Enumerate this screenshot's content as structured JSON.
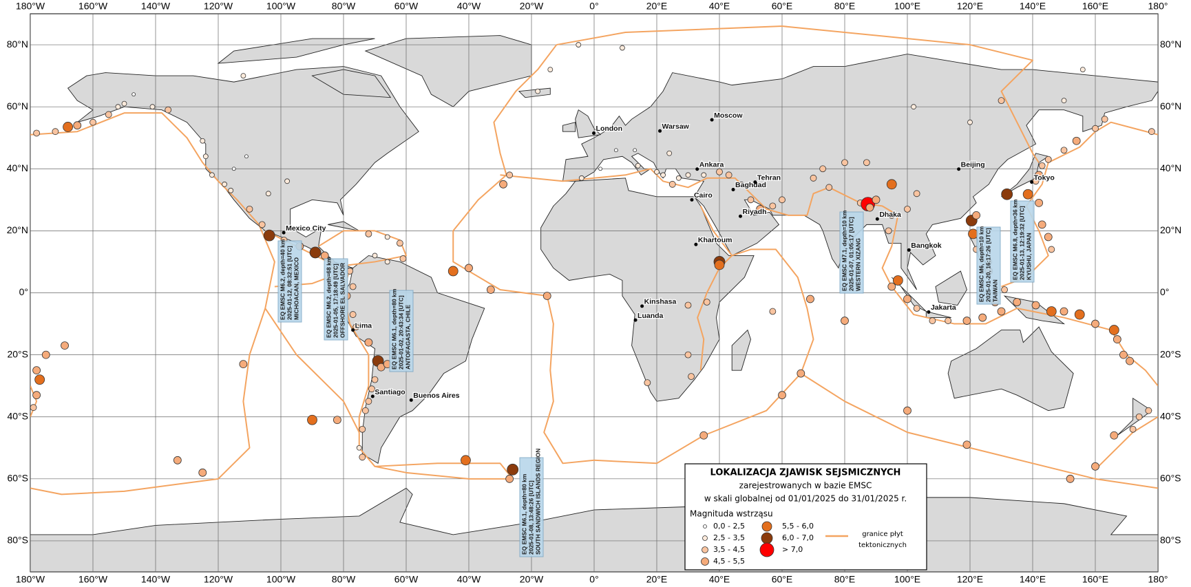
{
  "map": {
    "xlim": [
      -180,
      180
    ],
    "ylim": [
      -90,
      90
    ],
    "grid": true,
    "land_color": "#d9d9d9",
    "plate_color": "#f4a460",
    "xticks": [
      {
        "value": -180,
        "label": "180°W"
      },
      {
        "value": -160,
        "label": "160°W"
      },
      {
        "value": -140,
        "label": "140°W"
      },
      {
        "value": -120,
        "label": "120°W"
      },
      {
        "value": -100,
        "label": "100°W"
      },
      {
        "value": -80,
        "label": "80°W"
      },
      {
        "value": -60,
        "label": "60°W"
      },
      {
        "value": -40,
        "label": "40°W"
      },
      {
        "value": -20,
        "label": "20°W"
      },
      {
        "value": 0,
        "label": "0°"
      },
      {
        "value": 20,
        "label": "20°E"
      },
      {
        "value": 40,
        "label": "40°E"
      },
      {
        "value": 60,
        "label": "60°E"
      },
      {
        "value": 80,
        "label": "80°E"
      },
      {
        "value": 100,
        "label": "100°E"
      },
      {
        "value": 120,
        "label": "120°E"
      },
      {
        "value": 140,
        "label": "140°E"
      },
      {
        "value": 160,
        "label": "160°E"
      },
      {
        "value": 180,
        "label": "180°"
      }
    ],
    "yticks": [
      {
        "value": 80,
        "label": "80°N"
      },
      {
        "value": 60,
        "label": "60°N"
      },
      {
        "value": 40,
        "label": "40°N"
      },
      {
        "value": 20,
        "label": "20°N"
      },
      {
        "value": 0,
        "label": "0°"
      },
      {
        "value": -20,
        "label": "20°S"
      },
      {
        "value": -40,
        "label": "40°S"
      },
      {
        "value": -60,
        "label": "60°S"
      },
      {
        "value": -80,
        "label": "80°S"
      }
    ]
  },
  "cities": [
    {
      "name": "London",
      "lon": -0.1,
      "lat": 51.5
    },
    {
      "name": "Warsaw",
      "lon": 21,
      "lat": 52.2
    },
    {
      "name": "Moscow",
      "lon": 37.6,
      "lat": 55.8
    },
    {
      "name": "Ankara",
      "lon": 32.9,
      "lat": 39.9
    },
    {
      "name": "Baghdad",
      "lon": 44.4,
      "lat": 33.3
    },
    {
      "name": "Cairo",
      "lon": 31.2,
      "lat": 30
    },
    {
      "name": "Tehran",
      "lon": 51.4,
      "lat": 35.7
    },
    {
      "name": "Riyadh",
      "lon": 46.7,
      "lat": 24.7
    },
    {
      "name": "Khartoum",
      "lon": 32.5,
      "lat": 15.6
    },
    {
      "name": "Kinshasa",
      "lon": 15.3,
      "lat": -4.3
    },
    {
      "name": "Luanda",
      "lon": 13.2,
      "lat": -8.8
    },
    {
      "name": "Dhaka",
      "lon": 90.4,
      "lat": 23.8
    },
    {
      "name": "Bangkok",
      "lon": 100.5,
      "lat": 13.8
    },
    {
      "name": "Jakarta",
      "lon": 106.8,
      "lat": -6.2
    },
    {
      "name": "Beijing",
      "lon": 116.4,
      "lat": 39.9
    },
    {
      "name": "Tokyo",
      "lon": 139.7,
      "lat": 35.7
    },
    {
      "name": "Mexico City",
      "lon": -99.1,
      "lat": 19.4
    },
    {
      "name": "Lima",
      "lon": -77,
      "lat": -12
    },
    {
      "name": "Santiago",
      "lon": -70.7,
      "lat": -33.4
    },
    {
      "name": "Buenos Aires",
      "lon": -58.4,
      "lat": -34.6
    }
  ],
  "events": [
    {
      "lon": -178,
      "lat": 51.5,
      "mag": 4.0
    },
    {
      "lon": -172,
      "lat": 52,
      "mag": 4.2
    },
    {
      "lon": -168,
      "lat": 53.5,
      "mag": 5.6
    },
    {
      "lon": -165,
      "lat": 54,
      "mag": 4.5
    },
    {
      "lon": -160,
      "lat": 55,
      "mag": 4.0
    },
    {
      "lon": -155,
      "lat": 57.5,
      "mag": 3.8
    },
    {
      "lon": -150,
      "lat": 61,
      "mag": 3.0
    },
    {
      "lon": -152,
      "lat": 60,
      "mag": 3.2
    },
    {
      "lon": -147,
      "lat": 64,
      "mag": 2.0
    },
    {
      "lon": -141,
      "lat": 60,
      "mag": 3.0
    },
    {
      "lon": -136,
      "lat": 59,
      "mag": 3.5
    },
    {
      "lon": -125,
      "lat": 49,
      "mag": 3.2
    },
    {
      "lon": -124,
      "lat": 44,
      "mag": 3.0
    },
    {
      "lon": -122,
      "lat": 38,
      "mag": 2.8
    },
    {
      "lon": -118,
      "lat": 35,
      "mag": 3.0
    },
    {
      "lon": -116,
      "lat": 33,
      "mag": 3.2
    },
    {
      "lon": -115,
      "lat": 40,
      "mag": 2.0
    },
    {
      "lon": -111,
      "lat": 44,
      "mag": 2.0
    },
    {
      "lon": -98,
      "lat": 36,
      "mag": 2.5
    },
    {
      "lon": -104,
      "lat": 32,
      "mag": 3.0
    },
    {
      "lon": -110,
      "lat": 27,
      "mag": 4.0
    },
    {
      "lon": -106,
      "lat": 22,
      "mag": 4.2
    },
    {
      "lon": -103.7,
      "lat": 18.5,
      "mag": 6.2
    },
    {
      "lon": -99,
      "lat": 17,
      "mag": 4.3
    },
    {
      "lon": -94,
      "lat": 15,
      "mag": 4.6
    },
    {
      "lon": -89,
      "lat": 13,
      "mag": 6.2
    },
    {
      "lon": -86,
      "lat": 12,
      "mag": 4.5
    },
    {
      "lon": -84,
      "lat": 10,
      "mag": 4.2
    },
    {
      "lon": -82,
      "lat": 7,
      "mag": 4.0
    },
    {
      "lon": -78,
      "lat": 7,
      "mag": 4.2
    },
    {
      "lon": -77,
      "lat": 2,
      "mag": 4.4
    },
    {
      "lon": -79,
      "lat": -1,
      "mag": 4.5
    },
    {
      "lon": -72,
      "lat": 19,
      "mag": 3.5
    },
    {
      "lon": -66,
      "lat": 18,
      "mag": 3.2
    },
    {
      "lon": -62,
      "lat": 16,
      "mag": 3.5
    },
    {
      "lon": -61,
      "lat": 11,
      "mag": 3.8
    },
    {
      "lon": -66,
      "lat": 10,
      "mag": 3.0
    },
    {
      "lon": -70,
      "lat": 12,
      "mag": 3.0
    },
    {
      "lon": -77,
      "lat": -7,
      "mag": 4.0
    },
    {
      "lon": -76,
      "lat": -11,
      "mag": 4.2
    },
    {
      "lon": -72,
      "lat": -16,
      "mag": 4.5
    },
    {
      "lon": -69,
      "lat": -22,
      "mag": 6.1
    },
    {
      "lon": -68,
      "lat": -24,
      "mag": 4.5
    },
    {
      "lon": -70,
      "lat": -28,
      "mag": 4.2
    },
    {
      "lon": -71,
      "lat": -31,
      "mag": 4.3
    },
    {
      "lon": -72,
      "lat": -35,
      "mag": 4.0
    },
    {
      "lon": -73,
      "lat": -38,
      "mag": 3.8
    },
    {
      "lon": -74,
      "lat": -44,
      "mag": 3.5
    },
    {
      "lon": -75,
      "lat": -50,
      "mag": 3.2
    },
    {
      "lon": -74,
      "lat": -53,
      "mag": 4.0
    },
    {
      "lon": -66,
      "lat": -23,
      "mag": 4.5
    },
    {
      "lon": -63,
      "lat": -19,
      "mag": 4.0
    },
    {
      "lon": -26,
      "lat": -57,
      "mag": 6.1
    },
    {
      "lon": -27,
      "lat": -60,
      "mag": 4.5
    },
    {
      "lon": -41,
      "lat": -54,
      "mag": 5.6
    },
    {
      "lon": -15,
      "lat": -1,
      "mag": 5.0
    },
    {
      "lon": -33,
      "lat": 1,
      "mag": 4.5
    },
    {
      "lon": -40,
      "lat": 8,
      "mag": 5.2
    },
    {
      "lon": -45,
      "lat": 7,
      "mag": 5.6
    },
    {
      "lon": -90,
      "lat": -41,
      "mag": 5.8
    },
    {
      "lon": -82,
      "lat": -41,
      "mag": 4.8
    },
    {
      "lon": -112,
      "lat": -23,
      "mag": 4.7
    },
    {
      "lon": -133,
      "lat": -54,
      "mag": 4.8
    },
    {
      "lon": -169,
      "lat": -17,
      "mag": 4.5
    },
    {
      "lon": -175,
      "lat": -20,
      "mag": 4.5
    },
    {
      "lon": -178,
      "lat": -25,
      "mag": 4.5
    },
    {
      "lon": -177,
      "lat": -28,
      "mag": 5.5
    },
    {
      "lon": -178,
      "lat": -33,
      "mag": 4.5
    },
    {
      "lon": -179,
      "lat": -37,
      "mag": 4.0
    },
    {
      "lon": -29,
      "lat": 35,
      "mag": 4.5
    },
    {
      "lon": -27,
      "lat": 38,
      "mag": 3.8
    },
    {
      "lon": -18,
      "lat": 65,
      "mag": 3.0
    },
    {
      "lon": -14,
      "lat": 72,
      "mag": 3.0
    },
    {
      "lon": -5,
      "lat": 80,
      "mag": 3.0
    },
    {
      "lon": 9,
      "lat": 79,
      "mag": 3.0
    },
    {
      "lon": -4,
      "lat": 37,
      "mag": 2.5
    },
    {
      "lon": 14,
      "lat": 41,
      "mag": 2.8
    },
    {
      "lon": 20,
      "lat": 39,
      "mag": 3.0
    },
    {
      "lon": 22,
      "lat": 38,
      "mag": 3.2
    },
    {
      "lon": 25,
      "lat": 35,
      "mag": 3.5
    },
    {
      "lon": 27,
      "lat": 37,
      "mag": 3.3
    },
    {
      "lon": 30,
      "lat": 38,
      "mag": 3.4
    },
    {
      "lon": 35,
      "lat": 38,
      "mag": 3.3
    },
    {
      "lon": 40,
      "lat": 39,
      "mag": 3.5
    },
    {
      "lon": 43,
      "lat": 38,
      "mag": 3.8
    },
    {
      "lon": 47,
      "lat": 35,
      "mag": 3.2
    },
    {
      "lon": 50,
      "lat": 30,
      "mag": 3.5
    },
    {
      "lon": 57,
      "lat": 28,
      "mag": 4.0
    },
    {
      "lon": 60,
      "lat": 30,
      "mag": 3.8
    },
    {
      "lon": 53,
      "lat": 27,
      "mag": 4.5
    },
    {
      "lon": 13,
      "lat": 46,
      "mag": 2.3
    },
    {
      "lon": 7,
      "lat": 46,
      "mag": 2.0
    },
    {
      "lon": 24,
      "lat": 45,
      "mag": 2.7
    },
    {
      "lon": 2,
      "lat": 40,
      "mag": 2.0
    },
    {
      "lon": 40,
      "lat": 10,
      "mag": 6.0
    },
    {
      "lon": 40,
      "lat": 9,
      "mag": 5.7
    },
    {
      "lon": 36,
      "lat": -3,
      "mag": 4.2
    },
    {
      "lon": 30,
      "lat": -4,
      "mag": 4.4
    },
    {
      "lon": 30,
      "lat": -20,
      "mag": 4.0
    },
    {
      "lon": 31,
      "lat": -27,
      "mag": 4.2
    },
    {
      "lon": 17,
      "lat": -29,
      "mag": 4.0
    },
    {
      "lon": 35,
      "lat": -46,
      "mag": 4.6
    },
    {
      "lon": 66,
      "lat": -26,
      "mag": 4.5
    },
    {
      "lon": 60,
      "lat": -33,
      "mag": 4.6
    },
    {
      "lon": 80,
      "lat": -9,
      "mag": 4.5
    },
    {
      "lon": 69,
      "lat": -2,
      "mag": 4.5
    },
    {
      "lon": 57,
      "lat": -6,
      "mag": 4.0
    },
    {
      "lon": 100,
      "lat": -38,
      "mag": 4.7
    },
    {
      "lon": 119,
      "lat": -49,
      "mag": 4.6
    },
    {
      "lon": -125,
      "lat": -58,
      "mag": 4.5
    },
    {
      "lon": 70,
      "lat": 37,
      "mag": 4.0
    },
    {
      "lon": 73,
      "lat": 40,
      "mag": 3.8
    },
    {
      "lon": 80,
      "lat": 42,
      "mag": 4.0
    },
    {
      "lon": 87,
      "lat": 42,
      "mag": 3.5
    },
    {
      "lon": 75,
      "lat": 34,
      "mag": 4.0
    },
    {
      "lon": 85,
      "lat": 29,
      "mag": 4.2
    },
    {
      "lon": 87.4,
      "lat": 28.6,
      "mag": 7.1
    },
    {
      "lon": 88,
      "lat": 27.5,
      "mag": 4.5
    },
    {
      "lon": 90,
      "lat": 30,
      "mag": 4.5
    },
    {
      "lon": 95,
      "lat": 35,
      "mag": 5.8
    },
    {
      "lon": 103,
      "lat": 32,
      "mag": 4.4
    },
    {
      "lon": 100,
      "lat": 27,
      "mag": 3.8
    },
    {
      "lon": 95,
      "lat": 25,
      "mag": 4.3
    },
    {
      "lon": 94,
      "lat": 20,
      "mag": 4.1
    },
    {
      "lon": 97,
      "lat": 4,
      "mag": 5.7
    },
    {
      "lon": 95,
      "lat": 2,
      "mag": 4.8
    },
    {
      "lon": 100,
      "lat": -2,
      "mag": 4.5
    },
    {
      "lon": 103,
      "lat": -5,
      "mag": 4.4
    },
    {
      "lon": 108,
      "lat": -9,
      "mag": 4.3
    },
    {
      "lon": 113,
      "lat": -9,
      "mag": 4.4
    },
    {
      "lon": 119,
      "lat": -9,
      "mag": 4.6
    },
    {
      "lon": 124,
      "lat": -8,
      "mag": 4.5
    },
    {
      "lon": 128,
      "lat": -3,
      "mag": 4.8
    },
    {
      "lon": 130,
      "lat": -6,
      "mag": 4.6
    },
    {
      "lon": 135,
      "lat": -3,
      "mag": 4.6
    },
    {
      "lon": 141,
      "lat": -4,
      "mag": 5.0
    },
    {
      "lon": 146,
      "lat": -6,
      "mag": 5.6
    },
    {
      "lon": 150,
      "lat": -6,
      "mag": 4.8
    },
    {
      "lon": 155,
      "lat": -7,
      "mag": 5.6
    },
    {
      "lon": 160,
      "lat": -10,
      "mag": 4.6
    },
    {
      "lon": 166,
      "lat": -12,
      "mag": 5.6
    },
    {
      "lon": 167,
      "lat": -15,
      "mag": 4.7
    },
    {
      "lon": 169,
      "lat": -20,
      "mag": 4.6
    },
    {
      "lon": 171,
      "lat": -22,
      "mag": 4.5
    },
    {
      "lon": 126,
      "lat": 7,
      "mag": 4.6
    },
    {
      "lon": 126,
      "lat": 10,
      "mag": 4.4
    },
    {
      "lon": 122,
      "lat": 14,
      "mag": 4.2
    },
    {
      "lon": 120.5,
      "lat": 23.3,
      "mag": 6.0
    },
    {
      "lon": 121,
      "lat": 19,
      "mag": 5.6
    },
    {
      "lon": 122,
      "lat": 25,
      "mag": 4.5
    },
    {
      "lon": 131.8,
      "lat": 31.8,
      "mag": 6.8
    },
    {
      "lon": 138.5,
      "lat": 31.8,
      "mag": 5.7
    },
    {
      "lon": 141,
      "lat": 36,
      "mag": 4.4
    },
    {
      "lon": 142,
      "lat": 38,
      "mag": 4.5
    },
    {
      "lon": 143,
      "lat": 41,
      "mag": 4.3
    },
    {
      "lon": 145,
      "lat": 43,
      "mag": 4.4
    },
    {
      "lon": 150,
      "lat": 46,
      "mag": 4.2
    },
    {
      "lon": 154,
      "lat": 49,
      "mag": 4.5
    },
    {
      "lon": 160,
      "lat": 53,
      "mag": 4.4
    },
    {
      "lon": 163,
      "lat": 56,
      "mag": 4.0
    },
    {
      "lon": 142,
      "lat": 29,
      "mag": 4.5
    },
    {
      "lon": 143,
      "lat": 22,
      "mag": 4.6
    },
    {
      "lon": 145,
      "lat": 18,
      "mag": 4.5
    },
    {
      "lon": 146,
      "lat": 14,
      "mag": 4.2
    },
    {
      "lon": 131,
      "lat": 1,
      "mag": 4.4
    },
    {
      "lon": 135,
      "lat": 28,
      "mag": 4.3
    },
    {
      "lon": 102,
      "lat": 60,
      "mag": 3.0
    },
    {
      "lon": 120,
      "lat": 55,
      "mag": 3.0
    },
    {
      "lon": 130,
      "lat": 62,
      "mag": 3.5
    },
    {
      "lon": 150,
      "lat": 62,
      "mag": 3.2
    },
    {
      "lon": 156,
      "lat": 72,
      "mag": 3.0
    },
    {
      "lon": 178,
      "lat": 52,
      "mag": 4.3
    },
    {
      "lon": -112,
      "lat": 70,
      "mag": 2.5
    },
    {
      "lon": 174,
      "lat": -40,
      "mag": 4.2
    },
    {
      "lon": 177,
      "lat": -38,
      "mag": 4.3
    },
    {
      "lon": 172,
      "lat": -44,
      "mag": 3.8
    },
    {
      "lon": 166,
      "lat": -46,
      "mag": 4.5
    },
    {
      "lon": 160,
      "lat": -56,
      "mag": 4.8
    },
    {
      "lon": 152,
      "lat": -60,
      "mag": 4.5
    }
  ],
  "annotations": [
    {
      "lines": [
        "EQ EMSC M6.2, depth=40 km",
        "2025-01-12, 08:32:51 [UTC]",
        "MICHOACAN, MEXICO"
      ]
    },
    {
      "lines": [
        "EQ EMSC M6.2, depth=68 km",
        "2025-01-05, 17:18:49 [UTC]",
        "OFFSHORE EL SALVADOR"
      ]
    },
    {
      "lines": [
        "EQ EMSC M6.1, depth=80 km",
        "2025-01-02, 20:43:34 [UTC]",
        "ANTOFAGASTA, CHILE"
      ]
    },
    {
      "lines": [
        "EQ EMSC M6.1, depth=80 km",
        "2025-01-08, 13:48:26 [UTC]",
        "SOUTH SANDWICH ISLANDS REGION"
      ]
    },
    {
      "lines": [
        "EQ EMSC M7.1, depth=10 km",
        "2025-01-07, 01:05:17 [UTC]",
        "WESTERN XIZANG"
      ]
    },
    {
      "lines": [
        "EQ EMSC M6, depth=10 km",
        "2025-01-20, 16:17:26 [UTC]",
        "TAIWAN"
      ]
    },
    {
      "lines": [
        "EQ EMSC M6.8, depth=36 km",
        "2025-01-13, 12:19:32 [UTC]",
        "KYUSHU, JAPAN"
      ]
    }
  ],
  "legend": {
    "title": "LOKALIZACJA ZJAWISK SEJSMICZNYCH",
    "subtitle": [
      "zarejestrowanych w bazie EMSC",
      "w skali globalnej od 01/01/2025 do 31/01/2025 r."
    ],
    "magnitude_title": "Magnituda wstrząsu",
    "classes": [
      {
        "label": "0,0 - 2,5",
        "min": 0,
        "color": "#ffffff"
      },
      {
        "label": "2,5 - 3,5",
        "min": 2.5,
        "color": "#fdebdc"
      },
      {
        "label": "3,5 - 4,5",
        "min": 3.5,
        "color": "#f9c4a0"
      },
      {
        "label": "4,5 - 5,5",
        "min": 4.5,
        "color": "#f5ab7b"
      },
      {
        "label": "5,5 - 6,0",
        "min": 5.5,
        "color": "#e36f1e"
      },
      {
        "label": "6,0 - 7,0",
        "min": 6.0,
        "color": "#8b3b0c"
      },
      {
        "label": "> 7,0",
        "min": 7.0,
        "color": "#ff0000"
      }
    ],
    "plates_label": [
      "granice płyt",
      "tektonicznych"
    ]
  }
}
